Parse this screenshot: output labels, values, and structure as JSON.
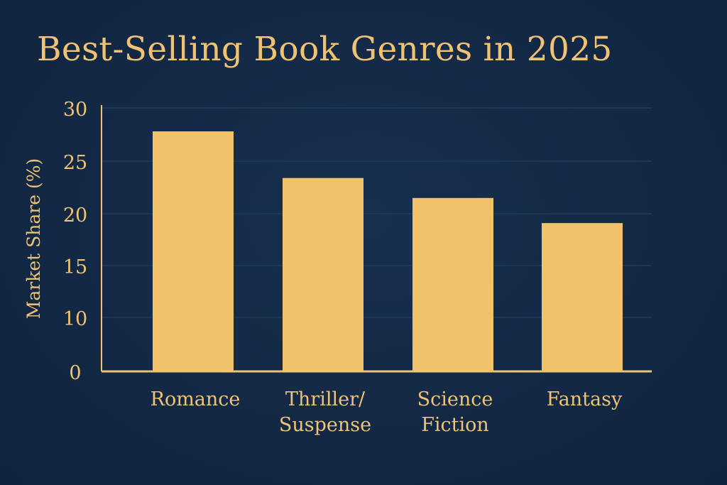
{
  "chart_data": {
    "type": "bar",
    "title": "Best-Selling Book Genres in 2025",
    "xlabel": "",
    "ylabel": "Market Share (%)",
    "categories": [
      [
        "Romance"
      ],
      [
        "Thriller/",
        "Suspense"
      ],
      [
        "Science",
        "Fiction"
      ],
      [
        "Fantasy"
      ]
    ],
    "values": [
      27.8,
      23.4,
      21.5,
      19.1
    ],
    "ylim": [
      0,
      30
    ],
    "yticks": [
      0,
      10,
      15,
      20,
      25,
      30
    ],
    "grid": true,
    "legend": "none"
  },
  "colors": {
    "background": "#132844",
    "bar": "#f0c26a",
    "text": "#efc373",
    "gridline": "#243d5c"
  }
}
